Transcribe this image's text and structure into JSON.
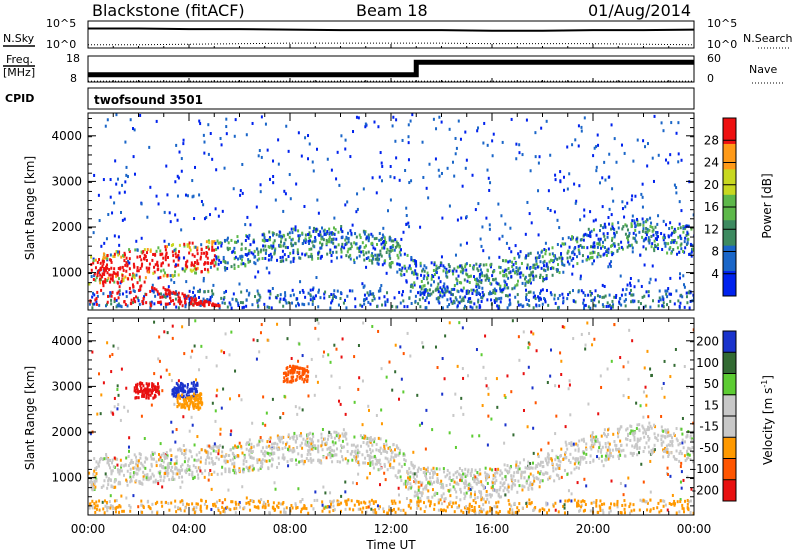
{
  "header": {
    "station": "Blackstone (fitACF)",
    "beam": "Beam 18",
    "date": "01/Aug/2014"
  },
  "labels": {
    "nsky": "N.Sky",
    "nsearch": "N.Search",
    "freq": "Freq.",
    "freq_unit": "[MHz]",
    "nave": "Nave",
    "cpid": "CPID",
    "cpid_value": "twofsound 3501",
    "ylabel": "Slant Range [km]",
    "xlabel": "Time UT",
    "power_label": "Power [dB]",
    "velocity_label_main": "Velocity [m s",
    "velocity_label_sup": "-1",
    "velocity_label_end": "]"
  },
  "noise_axis": {
    "top": "10^5",
    "bottom": "10^0"
  },
  "freq_axis": {
    "top": "18",
    "bottom": "8"
  },
  "nave_axis": {
    "top": "60",
    "bottom": "0"
  },
  "chart_data": [
    {
      "type": "line",
      "name": "noise",
      "series": [
        {
          "name": "N.Sky",
          "x": [
            0,
            2,
            4,
            6,
            8,
            10,
            12,
            14,
            16,
            18,
            20,
            22,
            24
          ],
          "values": [
            3.6,
            3.6,
            3.5,
            3.5,
            3.4,
            3.3,
            3.3,
            3.3,
            3.2,
            3.2,
            3.3,
            3.3,
            3.4
          ]
        },
        {
          "name": "N.Search",
          "x": [
            0,
            2,
            4,
            6,
            8,
            10,
            12,
            14,
            16,
            18,
            20,
            22,
            24
          ],
          "values": [
            0.6,
            0.6,
            0.7,
            0.8,
            0.9,
            0.9,
            0.9,
            0.9,
            0.8,
            0.8,
            0.8,
            0.7,
            0.6
          ]
        }
      ],
      "xlim": [
        0,
        24
      ],
      "ylim": [
        0,
        5
      ],
      "log_scale": true
    },
    {
      "type": "line",
      "name": "freq-nave",
      "series": [
        {
          "name": "Freq.",
          "x": [
            0,
            13.0,
            13.0,
            24
          ],
          "values": [
            10.8,
            10.8,
            15.6,
            15.6
          ]
        },
        {
          "name": "Nave",
          "x": [
            0,
            24
          ],
          "values": [
            2,
            2
          ]
        }
      ],
      "xlim": [
        0,
        24
      ],
      "ylim_freq": [
        8,
        18
      ],
      "ylim_nave": [
        0,
        60
      ]
    },
    {
      "type": "heatmap",
      "name": "power",
      "x_ticks": [
        "00:00",
        "04:00",
        "08:00",
        "12:00",
        "16:00",
        "20:00",
        "00:00"
      ],
      "y_ticks": [
        "1000",
        "2000",
        "3000",
        "4000"
      ],
      "xlim": [
        0,
        24
      ],
      "ylim": [
        180,
        4500
      ],
      "colorbar": {
        "ticks": [
          "4",
          "8",
          "12",
          "16",
          "20",
          "24",
          "28"
        ],
        "range": [
          0,
          32
        ],
        "colors": [
          "#0022ee",
          "#1a66c8",
          "#3d8a60",
          "#5db84a",
          "#c8d820",
          "#ff9a18",
          "#ee1010"
        ]
      },
      "features": [
        {
          "label": "range band",
          "time": [
            0,
            5,
            8,
            10,
            12,
            13,
            16,
            18,
            20,
            22,
            24
          ],
          "range": [
            1100,
            1400,
            1650,
            1700,
            1500,
            900,
            900,
            1200,
            1700,
            1900,
            1700
          ]
        },
        {
          "label": "high range clusters",
          "time": [
            1.5,
            3.5,
            8.0
          ],
          "range": [
            2900,
            2900,
            3300
          ]
        }
      ]
    },
    {
      "type": "heatmap",
      "name": "velocity",
      "x_ticks": [
        "00:00",
        "04:00",
        "08:00",
        "12:00",
        "16:00",
        "20:00",
        "00:00"
      ],
      "y_ticks": [
        "1000",
        "2000",
        "3000",
        "4000"
      ],
      "xlim": [
        0,
        24
      ],
      "ylim": [
        180,
        4500
      ],
      "colorbar": {
        "ticks": [
          "200",
          "100",
          "50",
          "15",
          "-15",
          "-50",
          "-100",
          "-200"
        ],
        "range": [
          -250,
          250
        ],
        "colors": [
          "#1a33cc",
          "#336b33",
          "#5dcc33",
          "#c8c8c8",
          "#c8c8c8",
          "#ff9900",
          "#ff5500",
          "#e81010"
        ]
      }
    }
  ]
}
